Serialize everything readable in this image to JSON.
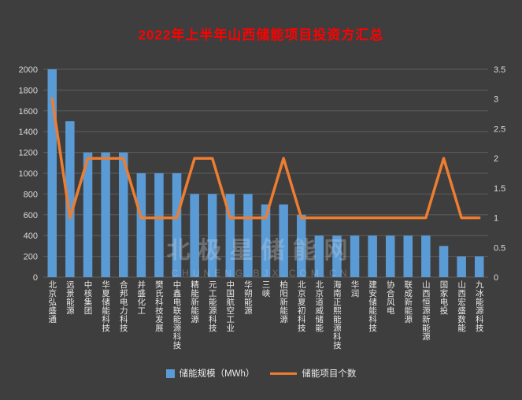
{
  "title": "2022年上半年山西储能项目投资方汇总",
  "watermark": {
    "line1": "北极星储能网",
    "line2": "CHUNENG.BJX.COM.CN"
  },
  "colors": {
    "background": "#3e3e3e",
    "title": "#fe0100",
    "bar": "#5b9bd5",
    "line": "#ed7d31",
    "axis_text": "#d9d9d9",
    "gridline": "#5d5d5d"
  },
  "legend": [
    {
      "label": "储能规模（MWh）",
      "color": "#5b9bd5",
      "type": "bar"
    },
    {
      "label": "储能项目个数",
      "color": "#ed7d31",
      "type": "line"
    }
  ],
  "chart_data": {
    "type": "bar",
    "title": "2022年上半年山西储能项目投资方汇总",
    "categories": [
      "北京弘盛通",
      "远景能源",
      "中核集团",
      "华夏储能科技",
      "合邦电力科技",
      "并盛化工",
      "樊氏科技发展",
      "中鑫电联能源科技",
      "精能新能源",
      "元工能源科技",
      "中国航空工业",
      "华朔能源",
      "三峡",
      "柏阳新能源",
      "北京夏初科技",
      "北京道威储能",
      "海南正熙能源科技",
      "华润",
      "建安储能科技",
      "协合风电",
      "联成新能源",
      "山西恒源新能源",
      "国家电投",
      "山西宏盛数能",
      "九冰能源科技"
    ],
    "series": [
      {
        "name": "储能规模（MWh）",
        "type": "bar",
        "axis": "left",
        "values": [
          2000,
          1500,
          1200,
          1200,
          1200,
          1000,
          1000,
          1000,
          800,
          800,
          800,
          800,
          700,
          700,
          600,
          400,
          400,
          400,
          400,
          400,
          400,
          400,
          300,
          200,
          200
        ]
      },
      {
        "name": "储能项目个数",
        "type": "line",
        "axis": "right",
        "values": [
          3,
          1,
          2,
          2,
          2,
          1,
          1,
          1,
          2,
          2,
          1,
          1,
          1,
          2,
          1,
          1,
          1,
          1,
          1,
          1,
          1,
          1,
          2,
          1,
          1
        ]
      }
    ],
    "left_axis": {
      "min": 0,
      "max": 2000,
      "step": 200
    },
    "right_axis": {
      "min": 0,
      "max": 3.5,
      "step": 0.5
    },
    "grid": "horizontal",
    "legend_position": "bottom"
  }
}
